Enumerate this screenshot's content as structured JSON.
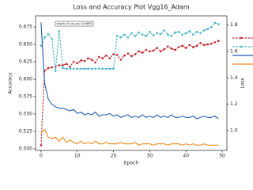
{
  "chart_data": {
    "type": "line",
    "title": "Loss and Accuracy Plot Vgg16_Adam",
    "xlabel": "Epoch",
    "ylabel": "Accuracy",
    "y2label": "Loss",
    "annotation": "epoch=5 val_acc=0.6690",
    "x": [
      0,
      1,
      2,
      3,
      4,
      5,
      6,
      7,
      8,
      9,
      10,
      11,
      12,
      13,
      14,
      15,
      16,
      17,
      18,
      19,
      20,
      21,
      22,
      23,
      24,
      25,
      26,
      27,
      28,
      29,
      30,
      31,
      32,
      33,
      34,
      35,
      36,
      37,
      38,
      39,
      40,
      41,
      42,
      43,
      44,
      45,
      46,
      47,
      48,
      49
    ],
    "xlim": [
      -1.5,
      51.3
    ],
    "xticks": [
      0,
      10,
      20,
      30,
      40,
      50
    ],
    "ylim": [
      0.4977,
      0.691
    ],
    "yticks": [
      {
        "value": 0.5,
        "label": "0.500"
      },
      0.525,
      {
        "value": 0.55,
        "label": "0.550"
      },
      0.575,
      {
        "value": 0.6,
        "label": "0.600"
      },
      0.625,
      {
        "value": 0.65,
        "label": "0.650"
      },
      0.675
    ],
    "y2lim": [
      0.85,
      1.87
    ],
    "y2ticks": [
      {
        "value": 1.0,
        "label": "1.0"
      },
      1.2,
      1.4,
      1.6,
      1.8
    ],
    "legend": "upper right",
    "series": [
      {
        "color": "#c0282d",
        "linestyle": "--",
        "marker": "o",
        "values": [
          0.505,
          0.612,
          0.616,
          0.617,
          0.618,
          0.62,
          0.62,
          0.622,
          0.618,
          0.625,
          0.623,
          0.627,
          0.626,
          0.63,
          0.628,
          0.624,
          0.632,
          0.63,
          0.634,
          0.63,
          0.636,
          0.635,
          0.628,
          0.634,
          0.637,
          0.633,
          0.636,
          0.64,
          0.638,
          0.642,
          0.64,
          0.641,
          0.645,
          0.64,
          0.643,
          0.647,
          0.644,
          0.642,
          0.646,
          0.648,
          0.645,
          0.649,
          0.646,
          0.648,
          0.652,
          0.649,
          0.65,
          0.651,
          0.653,
          0.655
        ]
      },
      {
        "color": "#4bb3c8",
        "linestyle": "--",
        "marker": "o",
        "values": [
          0.648,
          0.66,
          0.665,
          0.658,
          0.612,
          0.669,
          0.616,
          0.615,
          0.615,
          0.615,
          0.615,
          0.615,
          0.615,
          0.615,
          0.615,
          0.615,
          0.615,
          0.615,
          0.615,
          0.615,
          0.615,
          0.662,
          0.66,
          0.664,
          0.66,
          0.666,
          0.662,
          0.667,
          0.664,
          0.662,
          0.668,
          0.663,
          0.666,
          0.665,
          0.67,
          0.664,
          0.662,
          0.667,
          0.668,
          0.664,
          0.666,
          0.669,
          0.664,
          0.668,
          0.666,
          0.67,
          0.672,
          0.675,
          0.681,
          0.679
        ]
      },
      {
        "color": "#1f5fad",
        "linestyle": "-",
        "axis": "y2",
        "values": [
          1.82,
          1.36,
          1.24,
          1.2,
          1.18,
          1.17,
          1.17,
          1.16,
          1.15,
          1.16,
          1.13,
          1.14,
          1.12,
          1.13,
          1.12,
          1.14,
          1.11,
          1.12,
          1.12,
          1.13,
          1.11,
          1.12,
          1.1,
          1.11,
          1.12,
          1.1,
          1.11,
          1.1,
          1.12,
          1.1,
          1.11,
          1.1,
          1.12,
          1.1,
          1.11,
          1.1,
          1.12,
          1.1,
          1.1,
          1.11,
          1.1,
          1.1,
          1.11,
          1.09,
          1.1,
          1.11,
          1.1,
          1.1,
          1.11,
          1.09
        ]
      },
      {
        "color": "#f08a1c",
        "linestyle": "-",
        "axis": "y2",
        "values": [
          0.98,
          1.01,
          0.95,
          0.94,
          0.95,
          0.92,
          0.95,
          0.91,
          0.93,
          0.91,
          0.9,
          0.92,
          0.9,
          0.91,
          0.9,
          0.92,
          0.9,
          0.9,
          0.91,
          0.9,
          0.9,
          0.9,
          0.91,
          0.9,
          0.9,
          0.9,
          0.91,
          0.89,
          0.9,
          0.9,
          0.9,
          0.89,
          0.9,
          0.9,
          0.9,
          0.89,
          0.9,
          0.9,
          0.9,
          0.89,
          0.9,
          0.89,
          0.9,
          0.89,
          0.89,
          0.9,
          0.89,
          0.89,
          0.89,
          0.89
        ]
      }
    ]
  }
}
